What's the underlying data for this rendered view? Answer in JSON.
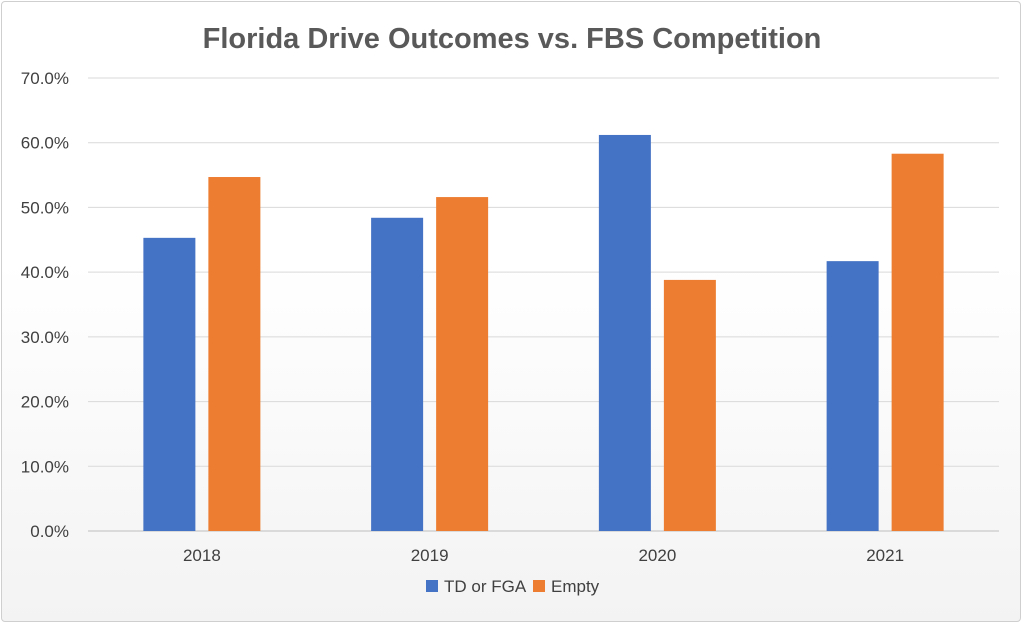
{
  "chart_data": {
    "type": "bar",
    "title": "Florida Drive Outcomes vs. FBS Competition",
    "xlabel": "",
    "ylabel": "",
    "categories": [
      "2018",
      "2019",
      "2020",
      "2021"
    ],
    "series": [
      {
        "name": "TD or FGA",
        "color": "#4472C4",
        "values": [
          45.3,
          48.4,
          61.2,
          41.7
        ]
      },
      {
        "name": "Empty",
        "color": "#ED7D31",
        "values": [
          54.7,
          51.6,
          38.8,
          58.3
        ]
      }
    ],
    "ylim": [
      0,
      70
    ],
    "yticks": [
      "0.0%",
      "10.0%",
      "20.0%",
      "30.0%",
      "40.0%",
      "50.0%",
      "60.0%",
      "70.0%"
    ],
    "grid": true,
    "legend_position": "bottom"
  }
}
